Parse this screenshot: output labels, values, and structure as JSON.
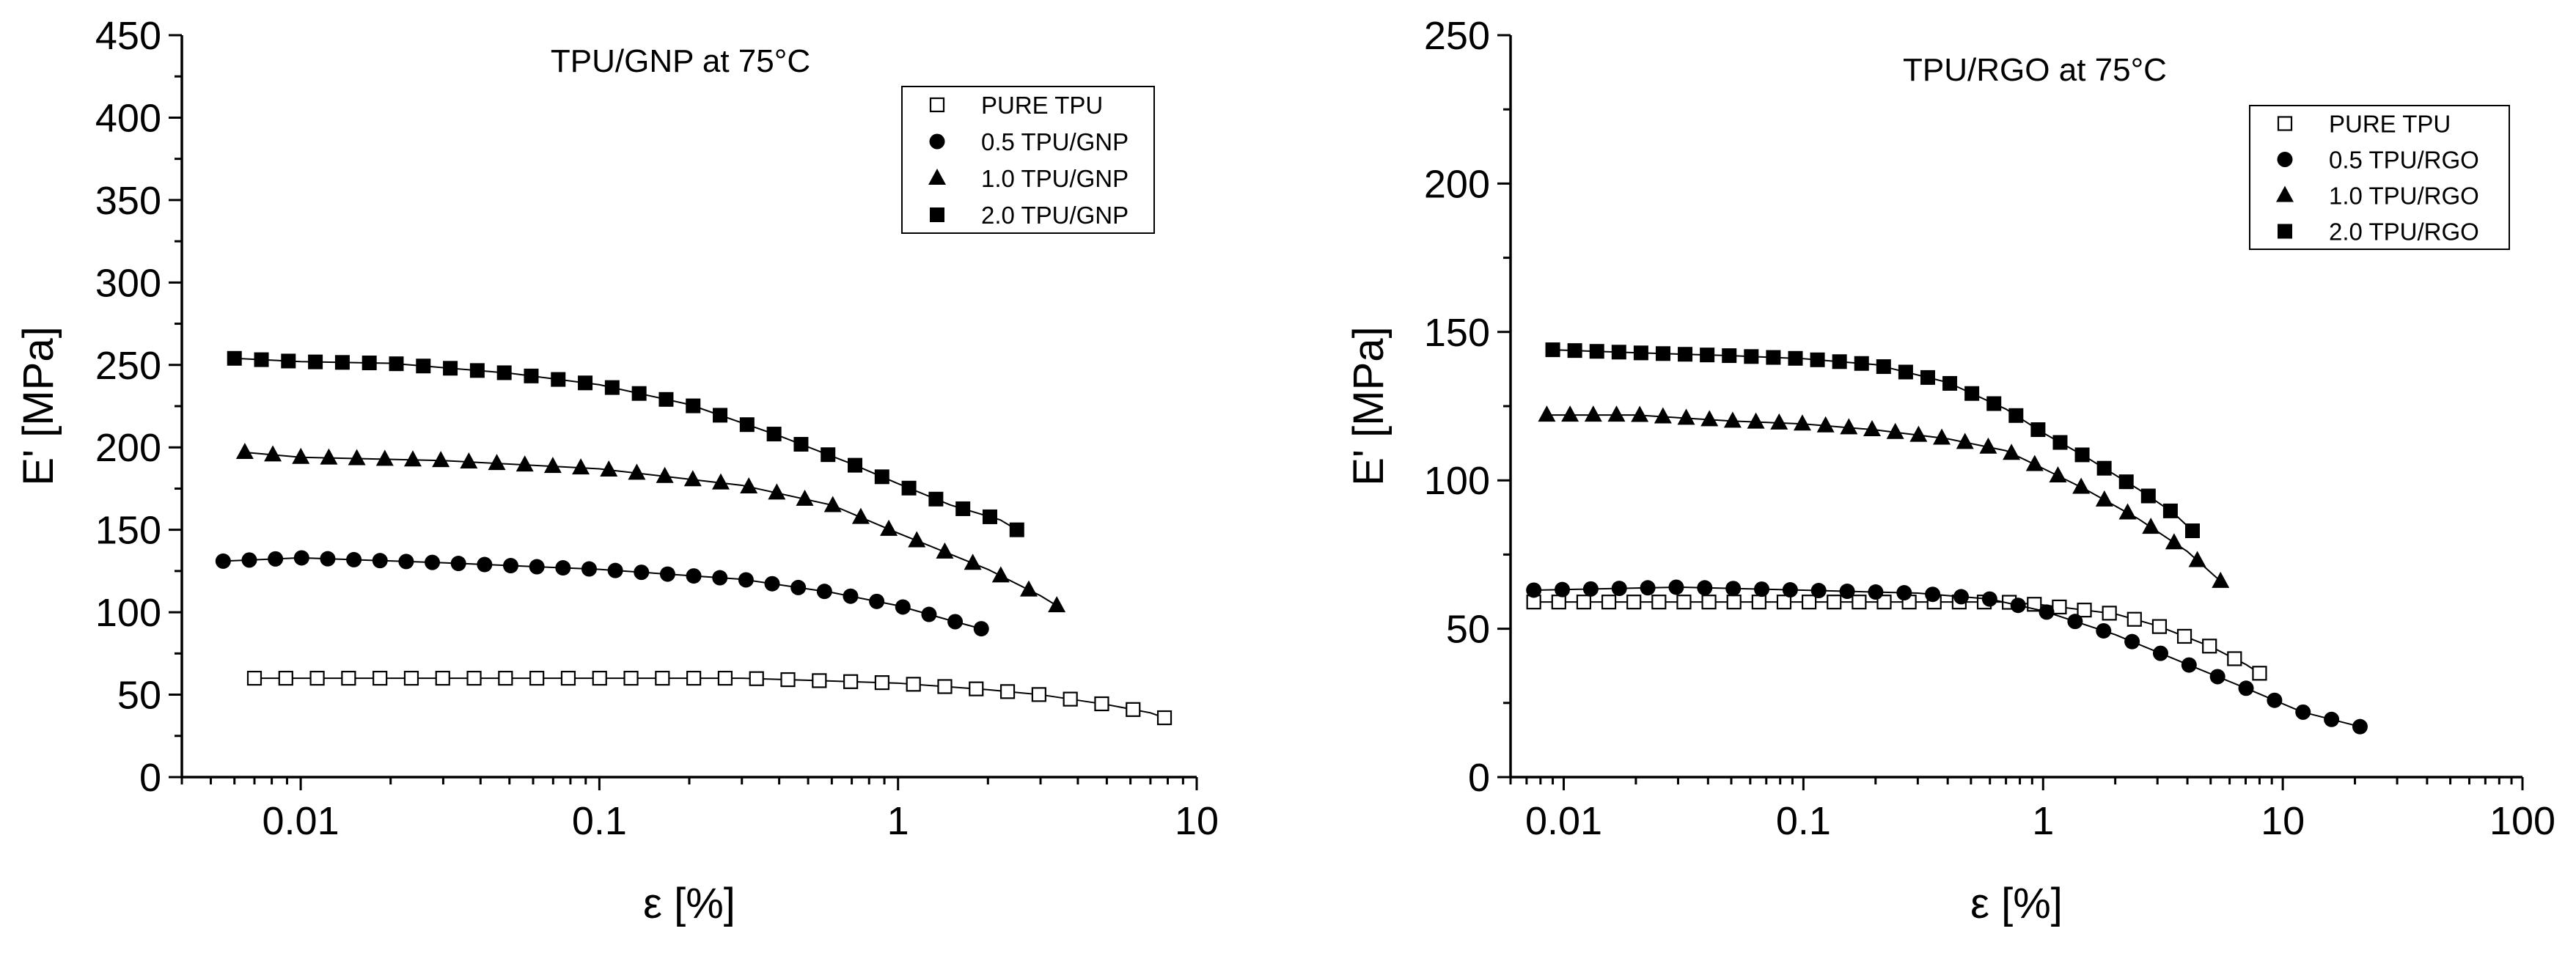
{
  "chart_data": [
    {
      "type": "scatter",
      "title": "TPU/GNP at 75°C",
      "xlabel": "ε [%]",
      "ylabel": "E' [MPa]",
      "xscale": "log",
      "xlim": [
        0.004,
        10
      ],
      "ylim": [
        0,
        450
      ],
      "xticks": [
        0.01,
        0.1,
        1,
        10
      ],
      "xtick_labels": [
        "0.01",
        "0.1",
        "1",
        "10"
      ],
      "yticks": [
        0,
        50,
        100,
        150,
        200,
        250,
        300,
        350,
        400,
        450
      ],
      "ytick_labels": [
        "0",
        "50",
        "100",
        "150",
        "200",
        "250",
        "300",
        "350",
        "400",
        "450"
      ],
      "legend_position": "top-right",
      "series": [
        {
          "name": "PURE TPU",
          "marker": "open-square",
          "points": [
            [
              0.007,
              60
            ],
            [
              0.03,
              60
            ],
            [
              0.1,
              60
            ],
            [
              0.3,
              60
            ],
            [
              1,
              57
            ],
            [
              2,
              53
            ],
            [
              3,
              50
            ],
            [
              5,
              44
            ],
            [
              7,
              39
            ],
            [
              7.8,
              36
            ]
          ]
        },
        {
          "name": "0.5 TPU/GNP",
          "marker": "filled-circle",
          "points": [
            [
              0.0055,
              131
            ],
            [
              0.01,
              133
            ],
            [
              0.03,
              130
            ],
            [
              0.1,
              126
            ],
            [
              0.3,
              120
            ],
            [
              0.6,
              112
            ],
            [
              1,
              104
            ],
            [
              1.5,
              95
            ],
            [
              1.9,
              90
            ]
          ]
        },
        {
          "name": "1.0 TPU/GNP",
          "marker": "filled-triangle",
          "points": [
            [
              0.0065,
              197
            ],
            [
              0.01,
              194
            ],
            [
              0.03,
              192
            ],
            [
              0.1,
              187
            ],
            [
              0.3,
              177
            ],
            [
              0.6,
              165
            ],
            [
              1,
              148
            ],
            [
              2,
              126
            ],
            [
              3,
              110
            ],
            [
              3.4,
              104
            ]
          ]
        },
        {
          "name": "2.0 TPU/GNP",
          "marker": "filled-square",
          "points": [
            [
              0.006,
              254
            ],
            [
              0.01,
              252
            ],
            [
              0.02,
              251
            ],
            [
              0.05,
              245
            ],
            [
              0.1,
              238
            ],
            [
              0.2,
              226
            ],
            [
              0.4,
              207
            ],
            [
              0.7,
              190
            ],
            [
              1,
              178
            ],
            [
              1.5,
              165
            ],
            [
              2.2,
              156
            ],
            [
              2.5,
              150
            ]
          ]
        }
      ]
    },
    {
      "type": "scatter",
      "title": "TPU/RGO at 75°C",
      "xlabel": "ε [%]",
      "ylabel": "E' [MPa]",
      "xscale": "log",
      "xlim": [
        0.006,
        100
      ],
      "ylim": [
        0,
        250
      ],
      "xticks": [
        0.01,
        0.1,
        1,
        10,
        100
      ],
      "xtick_labels": [
        "0.01",
        "0.1",
        "1",
        "10",
        "100"
      ],
      "yticks": [
        0,
        50,
        100,
        150,
        200,
        250
      ],
      "ytick_labels": [
        "0",
        "50",
        "100",
        "150",
        "200",
        "250"
      ],
      "legend_position": "top-right",
      "series": [
        {
          "name": "PURE TPU",
          "marker": "open-square",
          "points": [
            [
              0.0075,
              59
            ],
            [
              0.03,
              59
            ],
            [
              0.1,
              59
            ],
            [
              0.3,
              59
            ],
            [
              0.7,
              59
            ],
            [
              1,
              58
            ],
            [
              2,
              55
            ],
            [
              3,
              51
            ],
            [
              5,
              44
            ],
            [
              7,
              38
            ],
            [
              8,
              35
            ]
          ]
        },
        {
          "name": "0.5 TPU/RGO",
          "marker": "filled-circle",
          "points": [
            [
              0.0075,
              63
            ],
            [
              0.03,
              64
            ],
            [
              0.1,
              63
            ],
            [
              0.3,
              62
            ],
            [
              0.6,
              60
            ],
            [
              1,
              56
            ],
            [
              2,
              48
            ],
            [
              4,
              38
            ],
            [
              7,
              30
            ],
            [
              12,
              22
            ],
            [
              21,
              17
            ]
          ]
        },
        {
          "name": "1.0 TPU/RGO",
          "marker": "filled-triangle",
          "points": [
            [
              0.0085,
              122
            ],
            [
              0.02,
              122
            ],
            [
              0.05,
              120
            ],
            [
              0.1,
              119
            ],
            [
              0.2,
              117
            ],
            [
              0.4,
              114
            ],
            [
              0.7,
              110
            ],
            [
              1,
              104
            ],
            [
              1.5,
              97
            ],
            [
              2.5,
              87
            ],
            [
              4,
              76
            ],
            [
              5.5,
              66
            ]
          ]
        },
        {
          "name": "2.0 TPU/RGO",
          "marker": "filled-square",
          "points": [
            [
              0.009,
              144
            ],
            [
              0.02,
              143
            ],
            [
              0.05,
              142
            ],
            [
              0.1,
              141
            ],
            [
              0.2,
              139
            ],
            [
              0.4,
              133
            ],
            [
              0.7,
              124
            ],
            [
              1,
              116
            ],
            [
              1.5,
              108
            ],
            [
              2.5,
              97
            ],
            [
              3.5,
              89
            ],
            [
              4.2,
              83
            ]
          ]
        }
      ]
    }
  ]
}
